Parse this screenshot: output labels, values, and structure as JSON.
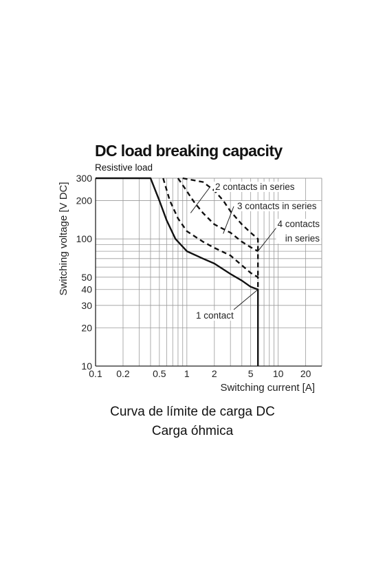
{
  "chart_data": {
    "type": "line",
    "title": "DC load breaking capacity",
    "subtitle": "Resistive load",
    "xlabel": "Switching current [A]",
    "ylabel": "Switching voltage [V DC]",
    "x_scale": "log",
    "y_scale": "log",
    "xlim": [
      0.1,
      30
    ],
    "ylim": [
      10,
      300
    ],
    "x_ticks": [
      0.1,
      0.2,
      0.5,
      1,
      2,
      5,
      10,
      20
    ],
    "x_tick_labels": [
      "0.1",
      "0.2",
      "0.5",
      "1",
      "2",
      "5",
      "10",
      "20"
    ],
    "y_ticks": [
      10,
      20,
      30,
      40,
      50,
      100,
      200,
      300
    ],
    "y_tick_labels": [
      "10",
      "20",
      "30",
      "40",
      "50",
      "100",
      "200",
      "300"
    ],
    "grid": true,
    "legend": "none",
    "series": [
      {
        "name": "1 contact",
        "style": "solid",
        "points": [
          [
            0.1,
            300
          ],
          [
            0.4,
            300
          ],
          [
            0.5,
            200
          ],
          [
            0.6,
            140
          ],
          [
            0.75,
            100
          ],
          [
            1,
            80
          ],
          [
            1.5,
            70
          ],
          [
            2,
            64
          ],
          [
            3,
            53
          ],
          [
            4,
            47
          ],
          [
            5,
            42
          ],
          [
            6,
            40
          ],
          [
            6,
            10
          ]
        ]
      },
      {
        "name": "2 contacts in series",
        "style": "dashed",
        "points": [
          [
            0.55,
            300
          ],
          [
            0.65,
            200
          ],
          [
            0.8,
            145
          ],
          [
            1,
            115
          ],
          [
            1.5,
            95
          ],
          [
            2,
            85
          ],
          [
            3,
            74
          ],
          [
            4,
            62
          ],
          [
            5,
            54
          ],
          [
            6,
            50
          ],
          [
            6,
            40
          ]
        ]
      },
      {
        "name": "3 contacts in series",
        "style": "dashed",
        "points": [
          [
            0.8,
            300
          ],
          [
            0.95,
            250
          ],
          [
            1.2,
            195
          ],
          [
            1.5,
            160
          ],
          [
            2,
            130
          ],
          [
            3,
            112
          ],
          [
            4,
            95
          ],
          [
            5,
            86
          ],
          [
            6,
            80
          ]
        ]
      },
      {
        "name": "4 contacts in series",
        "style": "dashed",
        "points": [
          [
            0.9,
            300
          ],
          [
            1.5,
            280
          ],
          [
            2,
            240
          ],
          [
            2.5,
            200
          ],
          [
            3,
            165
          ],
          [
            4,
            130
          ],
          [
            5,
            112
          ],
          [
            6,
            100
          ],
          [
            6,
            50
          ]
        ]
      }
    ],
    "annotations": [
      {
        "text": "2 contacts in series",
        "pointer_to": [
          1.1,
          160
        ]
      },
      {
        "text": "3 contacts in series",
        "pointer_to": [
          2.5,
          110
        ]
      },
      {
        "text": "4 contacts",
        "text2": "in series",
        "pointer_to": [
          6,
          80
        ]
      },
      {
        "text": "1 contact",
        "pointer_to": [
          6,
          40
        ]
      }
    ]
  },
  "captions": {
    "line1": "Curva de límite de carga DC",
    "line2": "Carga óhmica"
  }
}
